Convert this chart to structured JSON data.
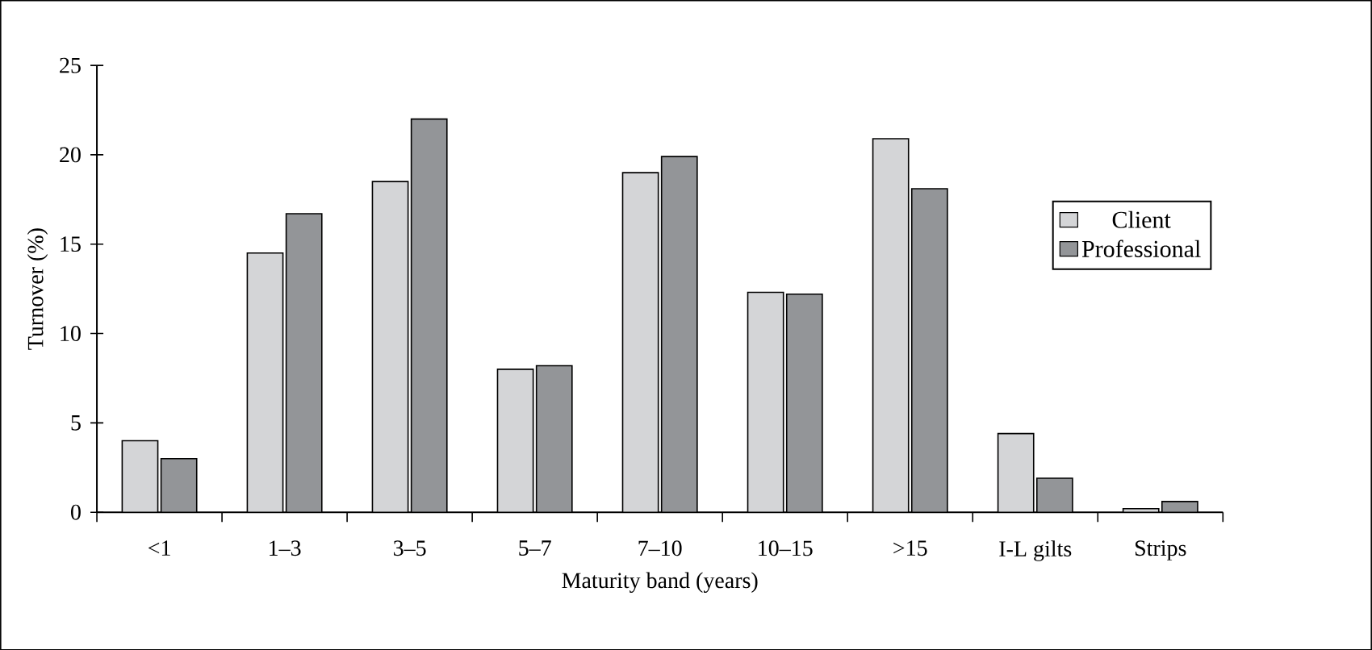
{
  "chart_data": {
    "type": "bar",
    "xlabel": "Maturity band (years)",
    "ylabel": "Turnover (%)",
    "categories": [
      "<1",
      "1–3",
      "3–5",
      "5–7",
      "7–10",
      "10–15",
      ">15",
      "I-L gilts",
      "Strips"
    ],
    "series": [
      {
        "name": "Client",
        "color": "#d4d5d7",
        "values": [
          4.0,
          14.5,
          18.5,
          8.0,
          19.0,
          12.3,
          20.9,
          4.4,
          0.2
        ]
      },
      {
        "name": "Professional",
        "color": "#939598",
        "values": [
          3.0,
          16.7,
          22.0,
          8.2,
          19.9,
          12.2,
          18.1,
          1.9,
          0.6
        ]
      }
    ],
    "ylim": [
      0,
      25
    ],
    "yticks": [
      0,
      5,
      10,
      15,
      20,
      25
    ],
    "grid": false,
    "legend": "right"
  }
}
